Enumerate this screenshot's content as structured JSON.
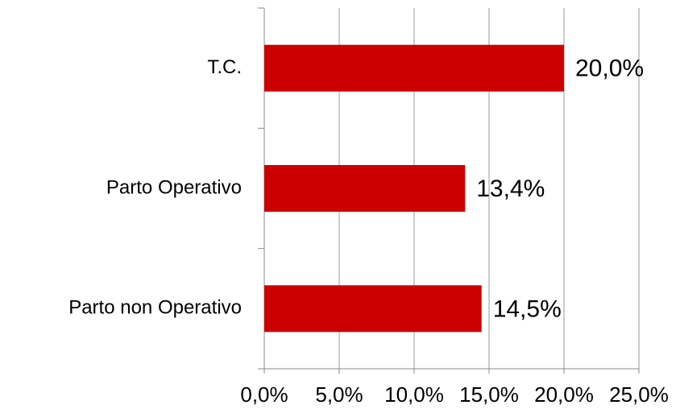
{
  "chart_data": {
    "type": "hbar",
    "categories": [
      "T.C.",
      "Parto Operativo",
      "Parto non Operativo"
    ],
    "values": [
      20.0,
      13.4,
      14.5
    ],
    "value_labels": [
      "20,0%",
      "13,4%",
      "14,5%"
    ],
    "color": "#cc0000",
    "xlim": [
      0,
      25
    ],
    "xticks": [
      {
        "value": 0,
        "label": "0,0%"
      },
      {
        "value": 5,
        "label": "5,0%"
      },
      {
        "value": 10,
        "label": "10,0%"
      },
      {
        "value": 15,
        "label": "15,0%"
      },
      {
        "value": 20,
        "label": "20,0%"
      },
      {
        "value": 25,
        "label": "25,0%"
      }
    ],
    "grid": true
  }
}
